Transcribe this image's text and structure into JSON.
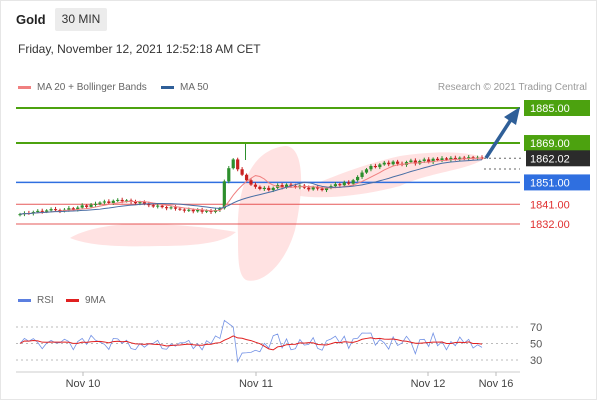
{
  "header": {
    "instrument": "Gold",
    "timeframe": "30 MIN"
  },
  "date_line": "Friday, November 12, 2021 12:52:18 AM CET",
  "legend": {
    "ma20": "MA 20 + Bollinger Bands",
    "ma50": "MA 50",
    "ma20_color": "#f08080",
    "ma50_color": "#2f5f98"
  },
  "credit": "Research © 2021 Trading Central",
  "rsi_legend": {
    "rsi": "RSI",
    "ma9": "9MA",
    "rsi_color": "#5b7fe0",
    "ma9_color": "#e02020"
  },
  "colors": {
    "green": "#4ca20f",
    "blue": "#2f6fe0",
    "red": "#e03030",
    "dark": "#2b2b2b",
    "candle_up": "#2d8f2d",
    "candle_down": "#c82020",
    "arrow": "#2f5f98"
  },
  "chart_data": {
    "type": "candlestick",
    "price_axis_range": [
      1826,
      1888
    ],
    "levels": [
      {
        "label": "1885.00",
        "value": 1885,
        "kind": "resistance"
      },
      {
        "label": "1869.00",
        "value": 1869,
        "kind": "resistance"
      },
      {
        "label": "1862.02",
        "value": 1862.02,
        "kind": "last"
      },
      {
        "label": "1851.00",
        "value": 1851,
        "kind": "pivot"
      },
      {
        "label": "1841.00",
        "value": 1841,
        "kind": "support"
      },
      {
        "label": "1832.00",
        "value": 1832,
        "kind": "support"
      }
    ],
    "x_ticks": [
      "Nov 10",
      "Nov 11",
      "Nov 12",
      "Nov 16"
    ],
    "closes": [
      1836.5,
      1837,
      1836.8,
      1837.5,
      1838,
      1837.6,
      1838.2,
      1838.8,
      1838.4,
      1837.9,
      1838.5,
      1839.2,
      1838.6,
      1839.5,
      1840.5,
      1839.8,
      1840.8,
      1841.2,
      1841.8,
      1842.3,
      1841.6,
      1842.6,
      1843,
      1842.4,
      1842.8,
      1842.1,
      1841.5,
      1842,
      1841.2,
      1840.6,
      1840,
      1840.4,
      1839.7,
      1839.2,
      1839.6,
      1839,
      1838.6,
      1838.1,
      1838.5,
      1837.8,
      1838.4,
      1837.6,
      1838.1,
      1837.5,
      1838.4,
      1839.2,
      1851.5,
      1857.5,
      1861.5,
      1857,
      1854.5,
      1852,
      1850,
      1849,
      1848,
      1848.5,
      1847.5,
      1848.5,
      1849.8,
      1848.7,
      1850,
      1849.4,
      1848.8,
      1849.5,
      1848.6,
      1847.8,
      1848.8,
      1848.2,
      1847.5,
      1848.5,
      1849.3,
      1850.2,
      1849.7,
      1851,
      1850.4,
      1852,
      1853.5,
      1855.5,
      1857,
      1858.5,
      1858,
      1859.2,
      1860,
      1859.3,
      1860.5,
      1859.5,
      1859,
      1860.3,
      1861,
      1859.6,
      1860.8,
      1861.5,
      1860.3,
      1861.8,
      1861.2,
      1862,
      1861.4,
      1862.2,
      1861.6,
      1862.3,
      1861.8,
      1862.5,
      1862,
      1862.4,
      1862.02
    ],
    "ma50_start": 1838,
    "ma50_end": 1858.5,
    "rsi": {
      "axis_ticks": [
        70,
        50,
        30
      ],
      "range": [
        20,
        80
      ]
    }
  }
}
